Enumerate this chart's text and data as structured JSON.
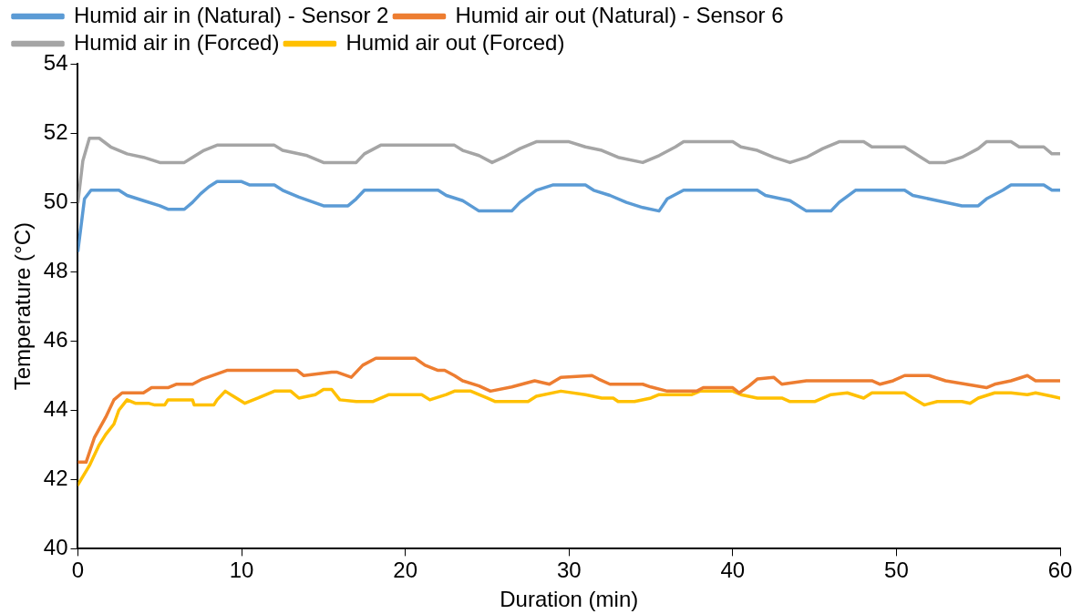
{
  "chart_data": {
    "type": "line",
    "xlabel": "Duration (min)",
    "ylabel": "Temperature (°C)",
    "xlim": [
      0,
      60
    ],
    "xticks": [
      0,
      10,
      20,
      30,
      40,
      50,
      60
    ],
    "ylim": [
      40,
      54
    ],
    "yticks": [
      40,
      42,
      44,
      46,
      48,
      50,
      52,
      54
    ],
    "grid": false,
    "legend": "top",
    "marker": "none",
    "line_style": "solid",
    "series": [
      {
        "name": "Humid air in (Natural) - Sensor 2",
        "color": "#5b9bd5",
        "x": [
          0,
          0.4,
          0.8,
          2.5,
          3,
          4,
          5,
          5.5,
          6.5,
          7,
          7.5,
          8,
          8.5,
          10,
          10.5,
          12,
          12.5,
          13.5,
          15,
          16.5,
          17,
          17.5,
          22,
          22.5,
          23.5,
          24.5,
          26.5,
          27,
          28,
          29,
          31,
          31.5,
          32.5,
          33.5,
          34.5,
          35.5,
          36,
          37,
          41.5,
          42,
          43.5,
          44.5,
          46,
          46.5,
          47.5,
          50.5,
          51,
          52.5,
          54,
          55,
          55.5,
          56.5,
          57,
          59,
          59.5,
          60
        ],
        "values": [
          48.6,
          50.1,
          50.35,
          50.35,
          50.2,
          50.05,
          49.9,
          49.8,
          49.8,
          50,
          50.25,
          50.45,
          50.6,
          50.6,
          50.5,
          50.5,
          50.35,
          50.15,
          49.9,
          49.9,
          50.1,
          50.35,
          50.35,
          50.2,
          50.05,
          49.75,
          49.75,
          50,
          50.35,
          50.5,
          50.5,
          50.35,
          50.2,
          50,
          49.85,
          49.75,
          50.1,
          50.35,
          50.35,
          50.2,
          50.05,
          49.75,
          49.75,
          50,
          50.35,
          50.35,
          50.2,
          50.05,
          49.9,
          49.9,
          50.1,
          50.35,
          50.5,
          50.5,
          50.35,
          50.35
        ]
      },
      {
        "name": "Humid air out (Natural) - Sensor 6",
        "color": "#ed7d31",
        "x": [
          0,
          0.5,
          1,
          1.7,
          2.2,
          2.7,
          4,
          4.5,
          5.5,
          6,
          7,
          7.6,
          9.1,
          13.4,
          13.8,
          15.5,
          15.8,
          16.7,
          17.4,
          18.2,
          20.6,
          21.2,
          22,
          22.4,
          23,
          23.5,
          24.5,
          25.2,
          26.5,
          27.9,
          28.8,
          29.5,
          31.4,
          31.8,
          32.5,
          34.5,
          35,
          36,
          37.8,
          38.2,
          40,
          40.4,
          41,
          41.5,
          42.5,
          43,
          44.5,
          48.5,
          49,
          49.8,
          50.5,
          52,
          53,
          55.5,
          56,
          57,
          58,
          58.5,
          60
        ],
        "values": [
          42.5,
          42.5,
          43.2,
          43.8,
          44.3,
          44.5,
          44.5,
          44.65,
          44.65,
          44.75,
          44.75,
          44.9,
          45.15,
          45.15,
          45,
          45.1,
          45.1,
          44.95,
          45.3,
          45.5,
          45.5,
          45.3,
          45.15,
          45.15,
          45,
          44.85,
          44.7,
          44.55,
          44.67,
          44.85,
          44.75,
          44.95,
          45,
          44.9,
          44.75,
          44.75,
          44.67,
          44.55,
          44.55,
          44.65,
          44.65,
          44.5,
          44.7,
          44.9,
          44.95,
          44.75,
          44.85,
          44.85,
          44.75,
          44.85,
          45,
          45,
          44.85,
          44.65,
          44.75,
          44.85,
          45,
          44.85,
          44.85
        ]
      },
      {
        "name": "Humid air in (Forced)",
        "color": "#a5a5a5",
        "x": [
          0,
          0.3,
          0.7,
          1.3,
          2,
          3,
          4,
          5,
          6.5,
          7,
          7.7,
          8.5,
          12,
          12.5,
          14,
          15,
          17,
          17.5,
          18.5,
          23,
          23.5,
          24.5,
          25.3,
          26,
          27,
          28,
          30,
          31,
          32,
          33,
          34.5,
          35.5,
          36.5,
          37,
          40,
          40.5,
          41.5,
          42.5,
          43.5,
          44.5,
          45.5,
          46.5,
          48,
          48.5,
          50.5,
          51,
          51.5,
          52,
          53,
          54,
          55,
          55.5,
          57,
          57.5,
          59,
          59.5,
          60
        ],
        "values": [
          50,
          51.2,
          51.85,
          51.85,
          51.6,
          51.4,
          51.3,
          51.15,
          51.15,
          51.3,
          51.5,
          51.65,
          51.65,
          51.5,
          51.35,
          51.15,
          51.15,
          51.4,
          51.65,
          51.65,
          51.5,
          51.35,
          51.15,
          51.3,
          51.55,
          51.75,
          51.75,
          51.6,
          51.5,
          51.3,
          51.15,
          51.35,
          51.6,
          51.75,
          51.75,
          51.6,
          51.5,
          51.3,
          51.15,
          51.3,
          51.55,
          51.75,
          51.75,
          51.6,
          51.6,
          51.45,
          51.3,
          51.15,
          51.15,
          51.3,
          51.55,
          51.75,
          51.75,
          51.6,
          51.6,
          51.4,
          51.4
        ]
      },
      {
        "name": "Humid air out (Forced)",
        "color": "#ffc000",
        "x": [
          0,
          0.7,
          1.3,
          1.7,
          2.2,
          2.5,
          3,
          3.5,
          4.3,
          4.7,
          5.3,
          5.5,
          7,
          7.1,
          8.3,
          8.5,
          9,
          9.5,
          10.2,
          11,
          12,
          13,
          13.5,
          14.5,
          15,
          15.5,
          16,
          17,
          18,
          19,
          21,
          21.5,
          22.5,
          23,
          24,
          25,
          25.5,
          27.5,
          28,
          29.5,
          31,
          32,
          32.7,
          33,
          34,
          35,
          35.5,
          37.5,
          38,
          40,
          40.5,
          41.5,
          43,
          43.5,
          45,
          46,
          47,
          48,
          48.5,
          50.5,
          51,
          51.7,
          52.5,
          54,
          54.5,
          55,
          56,
          57,
          58,
          58.5,
          59.5,
          60
        ],
        "values": [
          41.85,
          42.4,
          43,
          43.3,
          43.6,
          44,
          44.3,
          44.2,
          44.2,
          44.15,
          44.15,
          44.3,
          44.3,
          44.15,
          44.15,
          44.3,
          44.55,
          44.4,
          44.2,
          44.35,
          44.55,
          44.55,
          44.35,
          44.45,
          44.6,
          44.6,
          44.3,
          44.25,
          44.25,
          44.45,
          44.45,
          44.3,
          44.45,
          44.55,
          44.55,
          44.35,
          44.25,
          44.25,
          44.4,
          44.55,
          44.45,
          44.35,
          44.35,
          44.25,
          44.25,
          44.35,
          44.45,
          44.45,
          44.55,
          44.55,
          44.45,
          44.35,
          44.35,
          44.25,
          44.25,
          44.45,
          44.5,
          44.35,
          44.5,
          44.5,
          44.35,
          44.15,
          44.25,
          44.25,
          44.2,
          44.35,
          44.5,
          44.5,
          44.45,
          44.5,
          44.4,
          44.35
        ]
      }
    ]
  }
}
